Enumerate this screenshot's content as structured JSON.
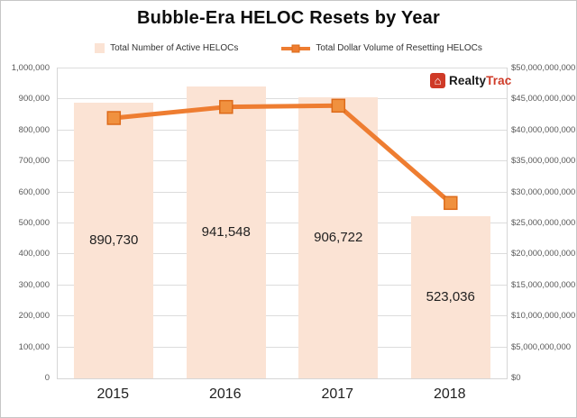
{
  "page": {
    "title": "Bubble-Era HELOC Resets by Year"
  },
  "logo": {
    "brand_left": "Realty",
    "brand_right": "Trac",
    "icon": "house-icon",
    "color": "#cf3a27"
  },
  "legend": [
    {
      "label": "Total Number of Active HELOCs",
      "swatch": "bar",
      "color": "#fbe3d4"
    },
    {
      "label": "Total Dollar Volume of Resetting HELOCs",
      "swatch": "line",
      "color": "#ee7d31"
    }
  ],
  "chart_data": {
    "type": "bar",
    "title": "Bubble-Era HELOC Resets by Year",
    "categories": [
      "2015",
      "2016",
      "2017",
      "2018"
    ],
    "series": [
      {
        "name": "Total Number of Active HELOCs",
        "type": "bar",
        "axis": "left",
        "values": [
          890730,
          941548,
          906722,
          523036
        ],
        "data_labels": [
          "890,730",
          "941,548",
          "906,722",
          "523,036"
        ],
        "color": "#fbe3d4"
      },
      {
        "name": "Total Dollar Volume of Resetting HELOCs",
        "type": "line",
        "axis": "right",
        "values": [
          42000000000,
          43800000000,
          44000000000,
          28300000000
        ],
        "color": "#ee7d31",
        "marker_fill": "#f0913f",
        "marker_stroke": "#dd6b1a"
      }
    ],
    "left_axis": {
      "min": 0,
      "max": 1000000,
      "step": 100000,
      "tick_labels": [
        "0",
        "100,000",
        "200,000",
        "300,000",
        "400,000",
        "500,000",
        "600,000",
        "700,000",
        "800,000",
        "900,000",
        "1,000,000"
      ]
    },
    "right_axis": {
      "min": 0,
      "max": 50000000000,
      "step": 5000000000,
      "tick_labels": [
        "$0",
        "$5,000,000,000",
        "$10,000,000,000",
        "$15,000,000,000",
        "$20,000,000,000",
        "$25,000,000,000",
        "$30,000,000,000",
        "$35,000,000,000",
        "$40,000,000,000",
        "$45,000,000,000",
        "$50,000,000,000"
      ]
    },
    "grid": true,
    "legend_position": "top"
  }
}
